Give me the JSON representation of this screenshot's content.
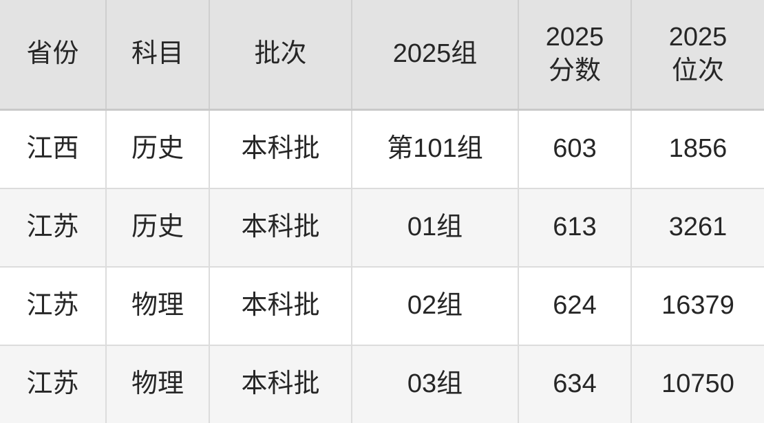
{
  "colors": {
    "header_bg": "#e3e3e3",
    "header_border": "#cfcfcf",
    "header_bottom": "#c9c9c9",
    "row_odd": "#ffffff",
    "row_even": "#f5f5f5",
    "cell_border": "#dcdcdc",
    "text": "#262626"
  },
  "chart_data": {
    "type": "table",
    "title": "",
    "columns": [
      {
        "key": "province",
        "label": "省份"
      },
      {
        "key": "subject",
        "label": "科目"
      },
      {
        "key": "batch",
        "label": "批次"
      },
      {
        "key": "major-group",
        "label": "2025组"
      },
      {
        "key": "score-2025",
        "label": "2025\n分数"
      },
      {
        "key": "rank-2025",
        "label": "2025\n位次"
      }
    ],
    "rows": [
      [
        "江西",
        "历史",
        "本科批",
        "第101组",
        "603",
        "1856"
      ],
      [
        "江苏",
        "历史",
        "本科批",
        "01组",
        "613",
        "3261"
      ],
      [
        "江苏",
        "物理",
        "本科批",
        "02组",
        "624",
        "16379"
      ],
      [
        "江苏",
        "物理",
        "本科批",
        "03组",
        "634",
        "10750"
      ]
    ]
  }
}
